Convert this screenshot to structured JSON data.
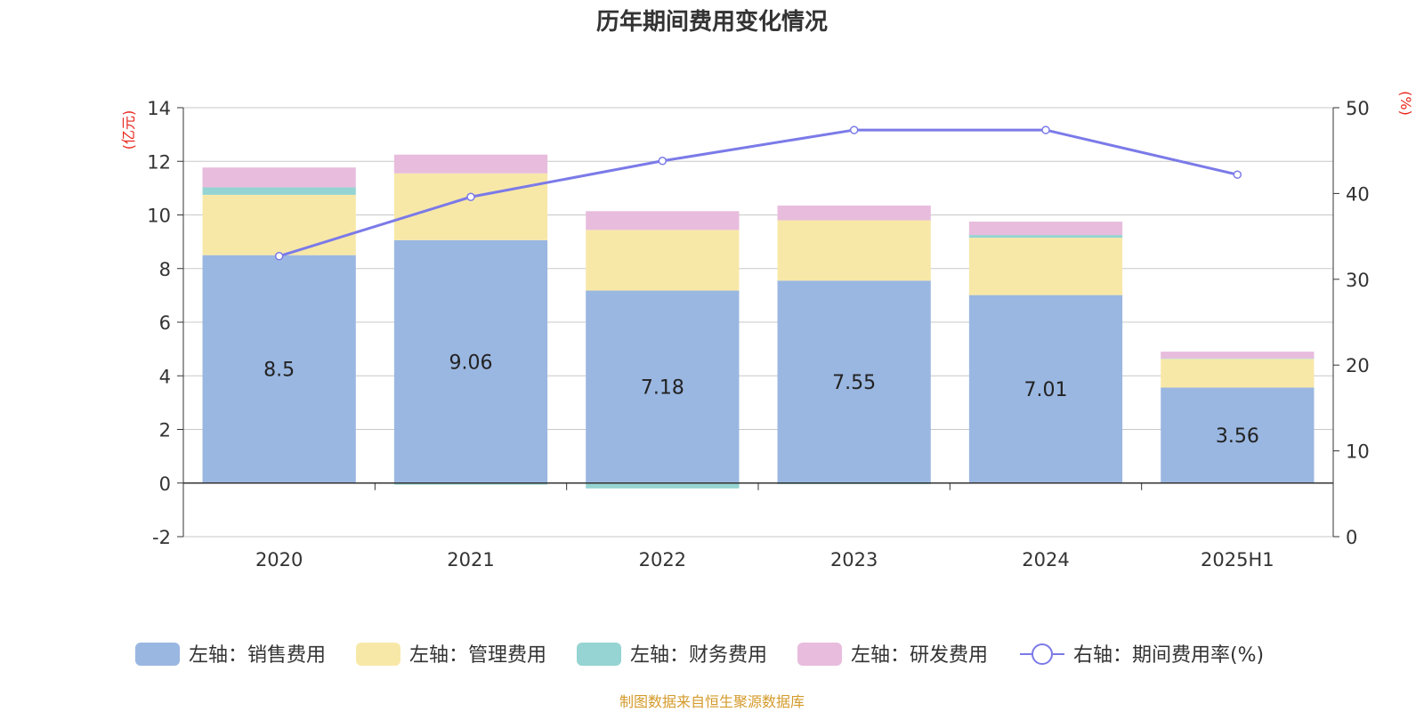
{
  "title": "历年期间费用变化情况",
  "source_note": "制图数据来自恒生聚源数据库",
  "colors": {
    "sales": "#9ab7e1",
    "admin": "#f8e8a8",
    "finance": "#95d4d2",
    "rd": "#e8bcdd",
    "rate": "#7b7ae8",
    "axis_unit": "#e8261c",
    "grid": "#c8c8c8"
  },
  "chart_data": {
    "type": "bar",
    "stacked": true,
    "categories": [
      "2020",
      "2021",
      "2022",
      "2023",
      "2024",
      "2025H1"
    ],
    "left_axis": {
      "unit_label": "(亿元)",
      "ylim": [
        -2,
        14
      ],
      "ticks": [
        "-2",
        "0",
        "2",
        "4",
        "6",
        "8",
        "10",
        "12",
        "14"
      ]
    },
    "right_axis": {
      "unit_label": "(%)",
      "ylim": [
        0,
        50
      ],
      "ticks": [
        "0",
        "10",
        "20",
        "30",
        "40",
        "50"
      ]
    },
    "series": [
      {
        "key": "sales",
        "name": "左轴：销售费用",
        "values": [
          8.5,
          9.06,
          7.18,
          7.55,
          7.01,
          3.56
        ],
        "labels": [
          "8.5",
          "9.06",
          "7.18",
          "7.55",
          "7.01",
          "3.56"
        ]
      },
      {
        "key": "admin",
        "name": "左轴：管理费用",
        "values": [
          2.25,
          2.49,
          2.26,
          2.25,
          2.14,
          1.07
        ]
      },
      {
        "key": "finance",
        "name": "左轴：财务费用",
        "values": [
          0.28,
          -0.06,
          -0.2,
          -0.04,
          0.1,
          0.02
        ]
      },
      {
        "key": "rd",
        "name": "左轴：研发费用",
        "values": [
          0.74,
          0.7,
          0.7,
          0.55,
          0.5,
          0.25
        ]
      }
    ],
    "line_series": {
      "key": "rate",
      "name": "右轴：期间费用率(%)",
      "values": [
        32.7,
        39.6,
        43.8,
        47.4,
        47.4,
        42.2
      ]
    },
    "grid": true,
    "legend": "bottom"
  }
}
